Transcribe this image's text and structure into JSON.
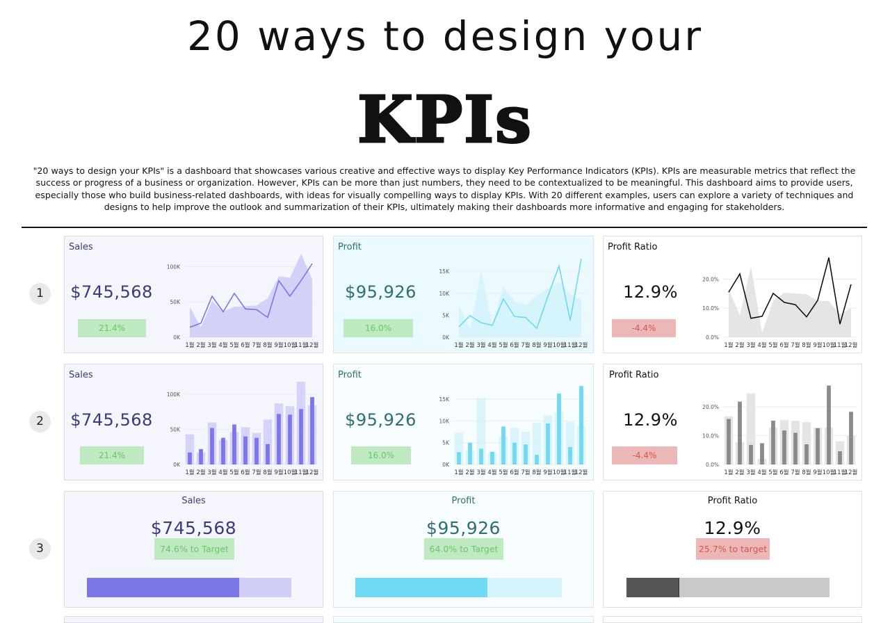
{
  "header": {
    "title_line1": "20 ways to design your",
    "title_line2": "KPIs",
    "description": "\"20 ways to design your KPIs\" is a dashboard that showcases various creative and effective ways to display Key Performance Indicators (KPIs). KPIs are measurable metrics that reflect the success or progress of a business or organization. However, KPIs can be more than just numbers, they need to be contextualized to be meaningful. This dashboard aims to provide users, especially those who build business-related dashboards, with ideas for visually compelling ways to display KPIs. With 20 different examples, users can explore a variety of techniques and designs to help improve the outlook and summarization of their KPIs, ultimately making their dashboards more informative and engaging for stakeholders."
  },
  "rows": [
    {
      "number": "1"
    },
    {
      "number": "2"
    },
    {
      "number": "3"
    }
  ],
  "kpis": {
    "sales": {
      "label": "Sales",
      "value": "$745,568",
      "change": "21.4%",
      "target": "74.6% to Target",
      "target_fraction": 0.746
    },
    "profit": {
      "label": "Profit",
      "value": "$95,926",
      "change": "16.0%",
      "target": "64.0% to Target",
      "target_fraction": 0.64
    },
    "ratio": {
      "label": "Profit Ratio",
      "value": "12.9%",
      "change": "-4.4%",
      "target": "25.7% to target",
      "target_fraction": 0.257
    }
  },
  "colors": {
    "sales": "#7b77e6",
    "sales_light": "#d1cff7",
    "sales_bg": "#f5f5fd",
    "sales_text": "#3d3a7a",
    "profit": "#6fd8f2",
    "profit_light": "#d5f3fb",
    "profit_bg": "#eafaff",
    "profit_text": "#2f6e72",
    "ratio": "#444444",
    "ratio_light": "#e2e2e2",
    "ratio_bg": "#ffffff",
    "ratio_text": "#111111",
    "green": "#6cc56c",
    "red": "#d9534f"
  },
  "chart_data": [
    {
      "type": "line",
      "kpi": "sales",
      "categories": [
        "1월",
        "2월",
        "3월",
        "4월",
        "5월",
        "6월",
        "7월",
        "8월",
        "9월",
        "10월",
        "11월",
        "12월"
      ],
      "y_ticks": [
        "0K",
        "50K",
        "100K"
      ],
      "ylim": [
        0,
        115000
      ],
      "series": [
        {
          "values": [
            14000,
            20000,
            58000,
            36000,
            62000,
            40000,
            39000,
            28000,
            80000,
            58000,
            80000,
            104000
          ]
        },
        {
          "values": [
            43000,
            14000,
            51000,
            36000,
            43000,
            44000,
            45000,
            55000,
            86000,
            84000,
            118000,
            82000
          ]
        }
      ]
    },
    {
      "type": "line",
      "kpi": "profit",
      "categories": [
        "1월",
        "2월",
        "3월",
        "4월",
        "5월",
        "6월",
        "7월",
        "8월",
        "9월",
        "10월",
        "11월",
        "12월"
      ],
      "y_ticks": [
        "0K",
        "5K",
        "10K",
        "15K"
      ],
      "ylim": [
        0,
        18500
      ],
      "series": [
        {
          "values": [
            2400,
            4900,
            3300,
            2700,
            8700,
            4700,
            4500,
            2000,
            9300,
            16200,
            3800,
            17800
          ]
        },
        {
          "values": [
            7300,
            1700,
            15000,
            2800,
            11500,
            8200,
            7400,
            9400,
            11100,
            12500,
            9700,
            8500
          ]
        }
      ]
    },
    {
      "type": "line",
      "kpi": "ratio",
      "categories": [
        "1월",
        "2월",
        "3월",
        "4월",
        "5월",
        "6월",
        "7월",
        "8월",
        "9월",
        "10월",
        "11월",
        "12월"
      ],
      "y_ticks": [
        "0.0%",
        "10.0%",
        "20.0%"
      ],
      "ylim": [
        0,
        28
      ],
      "series": [
        {
          "values": [
            15.5,
            21.8,
            6.5,
            7.2,
            15.1,
            12.0,
            11.2,
            7.0,
            12.7,
            27.4,
            4.5,
            18.2
          ]
        },
        {
          "values": [
            16.5,
            7.5,
            24.5,
            1.5,
            12.5,
            15.3,
            15.1,
            14.8,
            12.5,
            12.4,
            8.0,
            10.0
          ]
        }
      ]
    },
    {
      "type": "bar",
      "kpi": "sales",
      "categories": [
        "1월",
        "2월",
        "3월",
        "4월",
        "5월",
        "6월",
        "7월",
        "8월",
        "9월",
        "10월",
        "11월",
        "12월"
      ],
      "y_ticks": [
        "0K",
        "50K",
        "100K"
      ],
      "ylim": [
        0,
        115000
      ],
      "series": [
        {
          "values": [
            17000,
            22000,
            52000,
            38000,
            57000,
            40000,
            38000,
            29000,
            72000,
            71000,
            79000,
            96000
          ]
        },
        {
          "values": [
            43000,
            17000,
            60000,
            35000,
            46000,
            53000,
            45000,
            64000,
            87000,
            83000,
            118000,
            84000
          ]
        }
      ]
    },
    {
      "type": "bar",
      "kpi": "profit",
      "categories": [
        "1월",
        "2월",
        "3월",
        "4월",
        "5월",
        "6월",
        "7월",
        "8월",
        "9월",
        "10월",
        "11월",
        "12월"
      ],
      "y_ticks": [
        "0K",
        "5K",
        "10K",
        "15K"
      ],
      "ylim": [
        0,
        18500
      ],
      "series": [
        {
          "values": [
            2800,
            5000,
            3600,
            2900,
            8700,
            5000,
            4600,
            2200,
            9400,
            16300,
            4000,
            18000
          ]
        },
        {
          "values": [
            7300,
            3300,
            15200,
            2800,
            6500,
            8400,
            7500,
            9500,
            11200,
            12000,
            9800,
            8800
          ]
        }
      ]
    },
    {
      "type": "bar",
      "kpi": "ratio",
      "categories": [
        "1월",
        "2월",
        "3월",
        "4월",
        "5월",
        "6월",
        "7월",
        "8월",
        "9월",
        "10월",
        "11월",
        "12월"
      ],
      "y_ticks": [
        "0.0%",
        "10.0%",
        "20.0%"
      ],
      "ylim": [
        0,
        28
      ],
      "series": [
        {
          "values": [
            15.8,
            21.8,
            6.8,
            7.4,
            15.2,
            11.8,
            11.0,
            7.0,
            12.6,
            27.4,
            4.6,
            18.3
          ]
        },
        {
          "values": [
            16.7,
            7.7,
            24.7,
            1.8,
            12.8,
            15.5,
            15.2,
            14.7,
            12.8,
            12.9,
            8.0,
            10.1
          ]
        }
      ]
    }
  ]
}
